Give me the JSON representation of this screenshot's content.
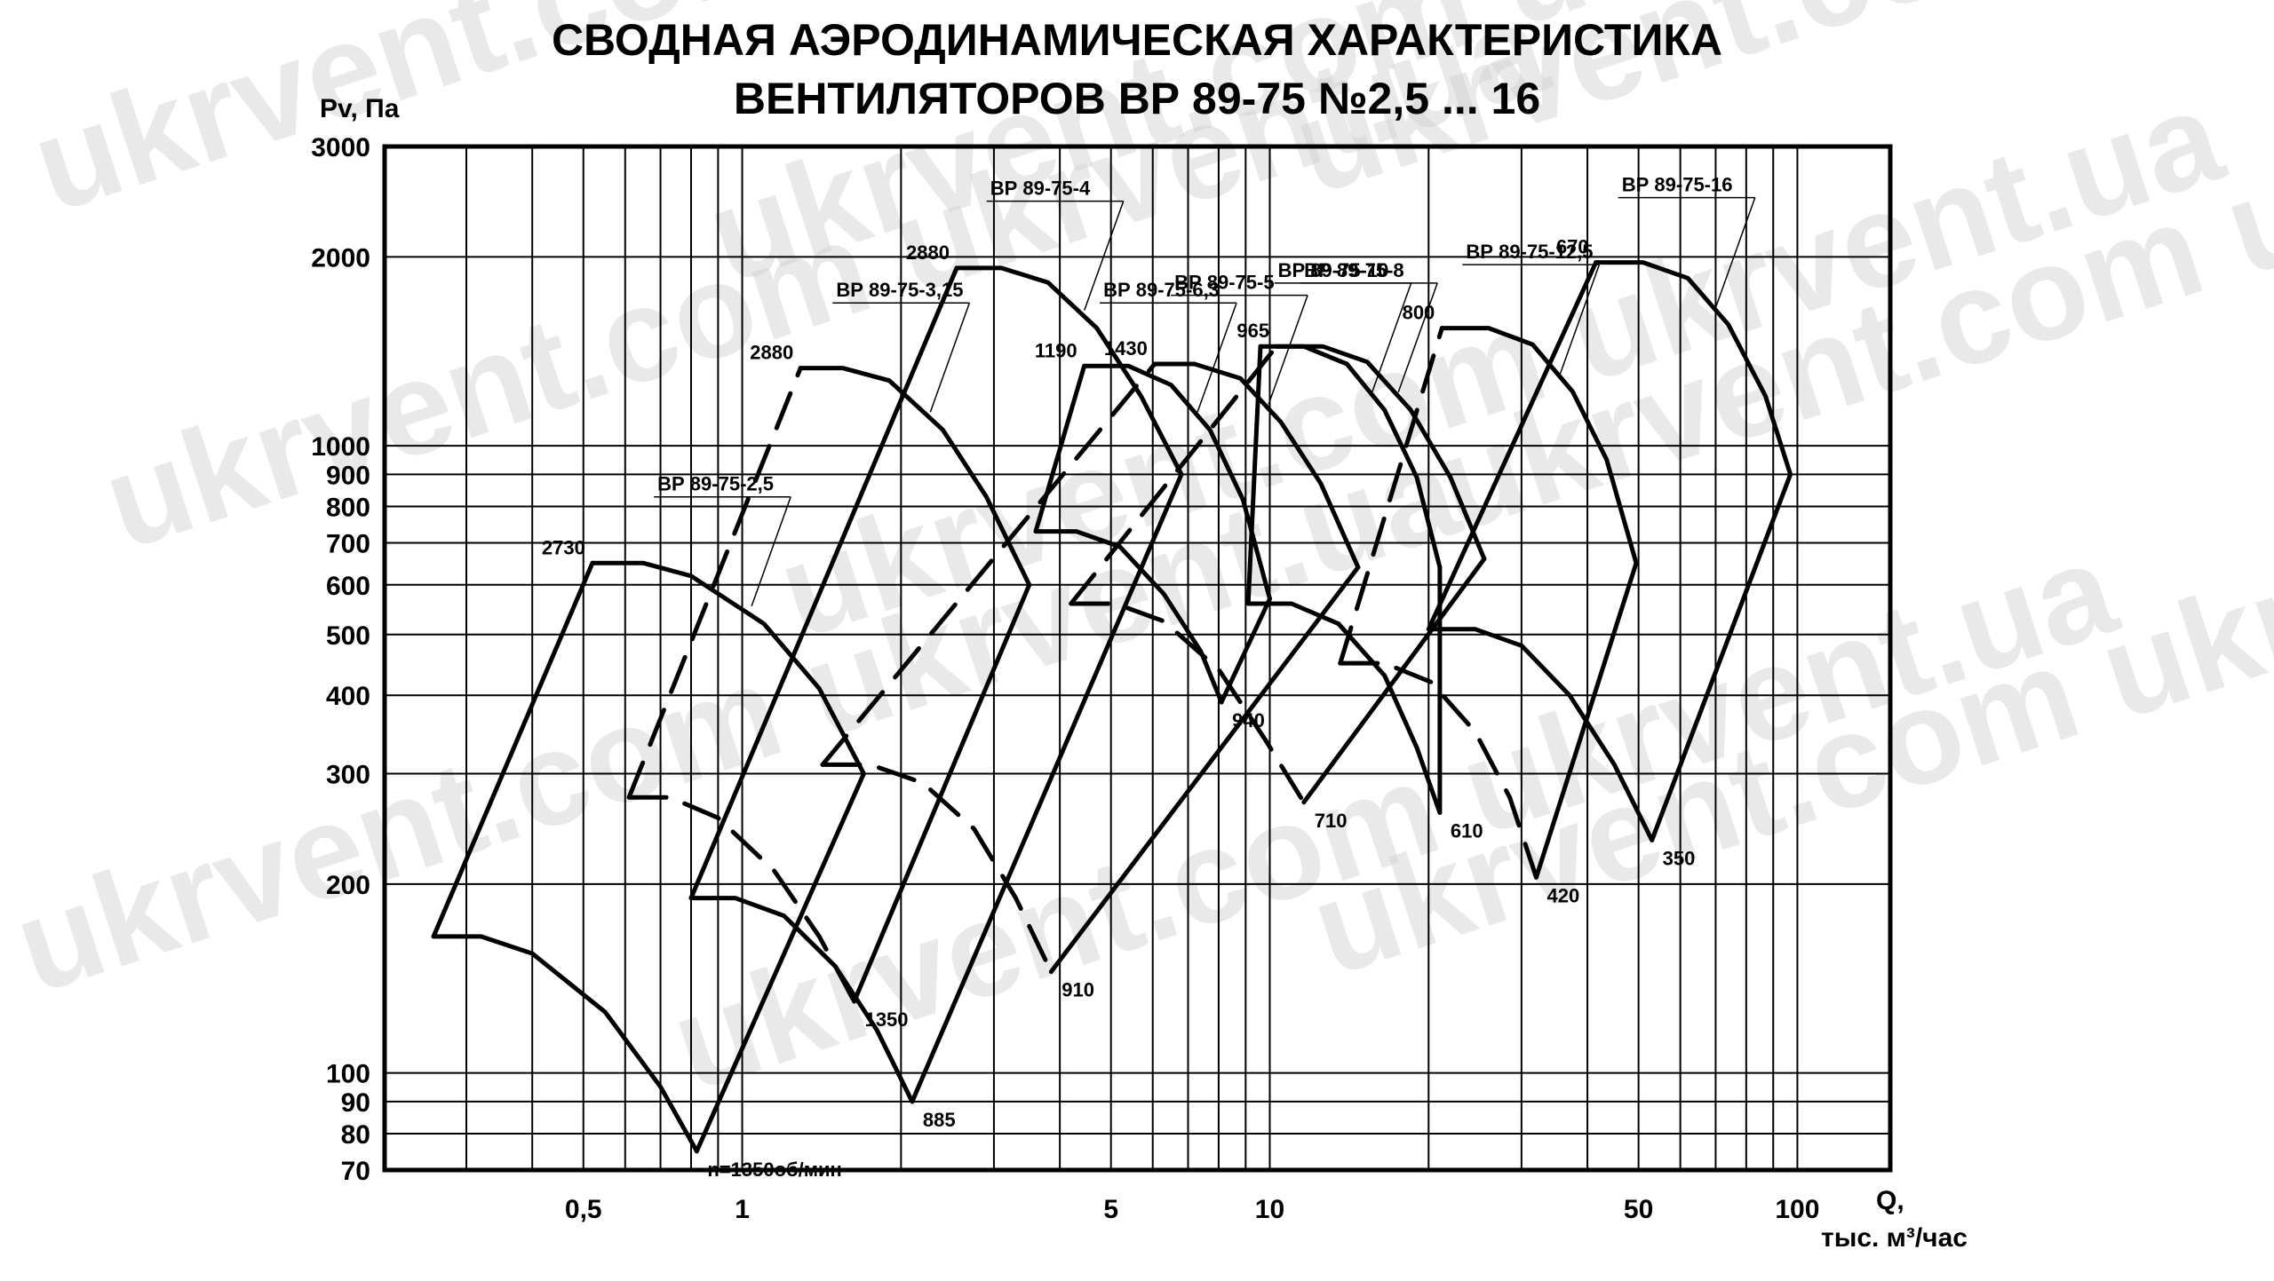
{
  "title_lines": [
    "СВОДНАЯ АЭРОДИНАМИЧЕСКАЯ ХАРАКТЕРИСТИКА",
    "ВЕНТИЛЯТОРОВ ВР 89-75 №2,5 ... 16"
  ],
  "watermark": "ukrvent.com ukrvent.ua",
  "chart_data": {
    "type": "line",
    "title": "СВОДНАЯ АЭРОДИНАМИЧЕСКАЯ ХАРАКТЕРИСТИКА ВЕНТИЛЯТОРОВ ВР 89-75 №2,5 ... 16",
    "ylabel": "Pv, Па",
    "xlabel": [
      "Q,",
      "тыс. м³/час"
    ],
    "x_scale": "log",
    "y_scale": "log",
    "xlim": [
      0.21,
      150
    ],
    "ylim": [
      70,
      3000
    ],
    "grid": true,
    "x_ticks": [
      {
        "value": 0.5,
        "label": "0,5"
      },
      {
        "value": 1,
        "label": "1"
      },
      {
        "value": 5,
        "label": "5"
      },
      {
        "value": 10,
        "label": "10"
      },
      {
        "value": 50,
        "label": "50"
      },
      {
        "value": 100,
        "label": "100"
      }
    ],
    "x_gridlines": [
      0.3,
      0.4,
      0.5,
      0.6,
      0.7,
      0.8,
      0.9,
      1,
      2,
      3,
      4,
      5,
      6,
      7,
      8,
      9,
      10,
      20,
      30,
      40,
      50,
      60,
      70,
      80,
      90,
      100
    ],
    "y_ticks": [
      {
        "value": 3000,
        "label": "3000"
      },
      {
        "value": 2000,
        "label": "2000"
      },
      {
        "value": 1000,
        "label": "1000"
      },
      {
        "value": 900,
        "label": "900"
      },
      {
        "value": 800,
        "label": "800"
      },
      {
        "value": 700,
        "label": "700"
      },
      {
        "value": 600,
        "label": "600"
      },
      {
        "value": 500,
        "label": "500"
      },
      {
        "value": 400,
        "label": "400"
      },
      {
        "value": 300,
        "label": "300"
      },
      {
        "value": 200,
        "label": "200"
      },
      {
        "value": 100,
        "label": "100"
      },
      {
        "value": 90,
        "label": "90"
      },
      {
        "value": 80,
        "label": "80"
      },
      {
        "value": 70,
        "label": "70"
      }
    ],
    "fans": [
      {
        "name": "ВР 89-75-2,5",
        "high_speed": 2730,
        "high_label": "2730",
        "low_speed": 1350,
        "low_label": "n=1350об/мин",
        "high_curve": [
          [
            0.52,
            650
          ],
          [
            0.65,
            650
          ],
          [
            0.8,
            620
          ],
          [
            1.1,
            520
          ],
          [
            1.4,
            410
          ],
          [
            1.7,
            300
          ]
        ],
        "low_curve": [
          [
            0.26,
            165
          ],
          [
            0.32,
            165
          ],
          [
            0.4,
            155
          ],
          [
            0.55,
            125
          ],
          [
            0.7,
            95
          ],
          [
            0.82,
            75
          ]
        ],
        "envelope_left": [
          [
            0.26,
            165
          ],
          [
            0.52,
            650
          ]
        ],
        "envelope_right": [
          [
            0.82,
            75
          ],
          [
            1.7,
            300
          ]
        ]
      },
      {
        "name": "ВР 89-75-3,15",
        "high_speed": 2880,
        "high_label": "2880",
        "low_speed": 1350,
        "low_label": "1350",
        "high_curve": [
          [
            1.29,
            1330
          ],
          [
            1.55,
            1330
          ],
          [
            1.9,
            1270
          ],
          [
            2.4,
            1060
          ],
          [
            2.9,
            830
          ],
          [
            3.5,
            600
          ]
        ],
        "low_curve": [
          [
            0.61,
            275
          ],
          [
            0.73,
            275
          ],
          [
            0.9,
            255
          ],
          [
            1.15,
            210
          ],
          [
            1.4,
            165
          ],
          [
            1.63,
            130
          ]
        ],
        "envelope_left": [
          [
            0.61,
            275
          ],
          [
            1.29,
            1330
          ]
        ],
        "envelope_right": [
          [
            1.63,
            130
          ],
          [
            3.5,
            600
          ]
        ]
      },
      {
        "name": "ВР 89-75-4",
        "high_speed": 2880,
        "high_label": "2880",
        "low_speed": 885,
        "low_label": "885",
        "high_curve": [
          [
            2.55,
            1920
          ],
          [
            3.1,
            1920
          ],
          [
            3.8,
            1820
          ],
          [
            4.7,
            1540
          ],
          [
            5.7,
            1200
          ],
          [
            6.8,
            900
          ]
        ],
        "low_curve": [
          [
            0.8,
            190
          ],
          [
            0.97,
            190
          ],
          [
            1.2,
            178
          ],
          [
            1.5,
            148
          ],
          [
            1.8,
            117
          ],
          [
            2.1,
            90
          ]
        ],
        "envelope_left": [
          [
            0.8,
            190
          ],
          [
            2.55,
            1920
          ]
        ],
        "envelope_right": [
          [
            2.1,
            90
          ],
          [
            6.8,
            900
          ]
        ]
      },
      {
        "name": "ВР 89-75-5",
        "high_speed": 1430,
        "high_label": "1430",
        "low_speed": 910,
        "low_label": "910",
        "high_curve": [
          [
            6.05,
            1350
          ],
          [
            7.2,
            1350
          ],
          [
            8.8,
            1280
          ],
          [
            10.5,
            1090
          ],
          [
            12.5,
            870
          ],
          [
            14.7,
            640
          ]
        ],
        "low_curve": [
          [
            1.42,
            310
          ],
          [
            1.75,
            310
          ],
          [
            2.2,
            290
          ],
          [
            2.75,
            245
          ],
          [
            3.3,
            190
          ],
          [
            3.85,
            145
          ]
        ],
        "envelope_left": [
          [
            1.42,
            310
          ],
          [
            6.05,
            1350
          ]
        ],
        "envelope_right": [
          [
            3.85,
            145
          ],
          [
            14.7,
            640
          ]
        ]
      },
      {
        "name": "ВР 89-75-6,3",
        "high_speed": 1190,
        "high_label": "1190",
        "low_speed": 940,
        "low_label": "940",
        "high_curve": [
          [
            4.45,
            1340
          ],
          [
            5.4,
            1340
          ],
          [
            6.5,
            1250
          ],
          [
            7.7,
            1060
          ],
          [
            8.9,
            820
          ],
          [
            10,
            570
          ]
        ],
        "low_curve": [
          [
            3.6,
            730
          ],
          [
            4.3,
            730
          ],
          [
            5.2,
            690
          ],
          [
            6.3,
            580
          ],
          [
            7.4,
            470
          ],
          [
            8.1,
            390
          ]
        ],
        "envelope_left": [
          [
            3.6,
            730
          ],
          [
            4.45,
            1340
          ]
        ],
        "envelope_right": [
          [
            8.1,
            390
          ],
          [
            10,
            570
          ]
        ]
      },
      {
        "name": "ВР 89-75-8",
        "high_speed": 965,
        "high_label": "965",
        "low_speed": 710,
        "low_label": "710",
        "high_curve": [
          [
            10.3,
            1440
          ],
          [
            12.6,
            1440
          ],
          [
            15.3,
            1360
          ],
          [
            18.5,
            1140
          ],
          [
            22,
            890
          ],
          [
            25.5,
            660
          ]
        ],
        "low_curve": [
          [
            4.2,
            560
          ],
          [
            5.1,
            560
          ],
          [
            6.3,
            525
          ],
          [
            8.0,
            440
          ],
          [
            9.8,
            340
          ],
          [
            11.6,
            270
          ]
        ],
        "envelope_left": [
          [
            4.2,
            560
          ],
          [
            10.3,
            1440
          ]
        ],
        "envelope_right": [
          [
            11.6,
            270
          ],
          [
            25.5,
            660
          ]
        ]
      },
      {
        "name": "ВР 89-75-10",
        "high_speed": 965,
        "high_label": "",
        "low_speed": 610,
        "low_label": "610",
        "high_curve": [
          [
            9.6,
            1440
          ],
          [
            11.6,
            1440
          ],
          [
            14.0,
            1350
          ],
          [
            16.5,
            1140
          ],
          [
            19.0,
            890
          ],
          [
            21.0,
            640
          ]
        ],
        "low_curve": [
          [
            9.1,
            560
          ],
          [
            11.0,
            560
          ],
          [
            13.5,
            520
          ],
          [
            16.5,
            430
          ],
          [
            19.0,
            330
          ],
          [
            21.0,
            260
          ]
        ],
        "envelope_left": [
          [
            9.1,
            560
          ],
          [
            9.6,
            1440
          ]
        ],
        "envelope_right": [
          [
            21.0,
            260
          ],
          [
            21.0,
            640
          ]
        ]
      },
      {
        "name": "ВР 89-75-12,5",
        "high_speed": 800,
        "high_label": "800",
        "low_speed": 420,
        "low_label": "420",
        "high_curve": [
          [
            21.2,
            1540
          ],
          [
            26,
            1540
          ],
          [
            31.5,
            1450
          ],
          [
            37.5,
            1220
          ],
          [
            43.5,
            950
          ],
          [
            49.5,
            650
          ]
        ],
        "low_curve": [
          [
            13.6,
            450
          ],
          [
            16.5,
            450
          ],
          [
            20.2,
            420
          ],
          [
            24.5,
            350
          ],
          [
            28.5,
            275
          ],
          [
            32,
            205
          ]
        ],
        "envelope_left": [
          [
            13.6,
            450
          ],
          [
            21.2,
            1540
          ]
        ],
        "envelope_right": [
          [
            32,
            205
          ],
          [
            49.5,
            650
          ]
        ]
      },
      {
        "name": "ВР 89-75-16",
        "high_speed": 670,
        "high_label": "670",
        "low_speed": 350,
        "low_label": "350",
        "high_curve": [
          [
            41.5,
            1960
          ],
          [
            51,
            1960
          ],
          [
            62,
            1850
          ],
          [
            74,
            1560
          ],
          [
            87,
            1200
          ],
          [
            97,
            900
          ]
        ],
        "low_curve": [
          [
            20.0,
            510
          ],
          [
            24.5,
            510
          ],
          [
            30,
            480
          ],
          [
            37,
            400
          ],
          [
            45,
            310
          ],
          [
            53,
            235
          ]
        ],
        "envelope_left": [
          [
            20.0,
            510
          ],
          [
            41.5,
            1960
          ]
        ],
        "envelope_right": [
          [
            53,
            235
          ],
          [
            97,
            900
          ]
        ]
      }
    ]
  }
}
